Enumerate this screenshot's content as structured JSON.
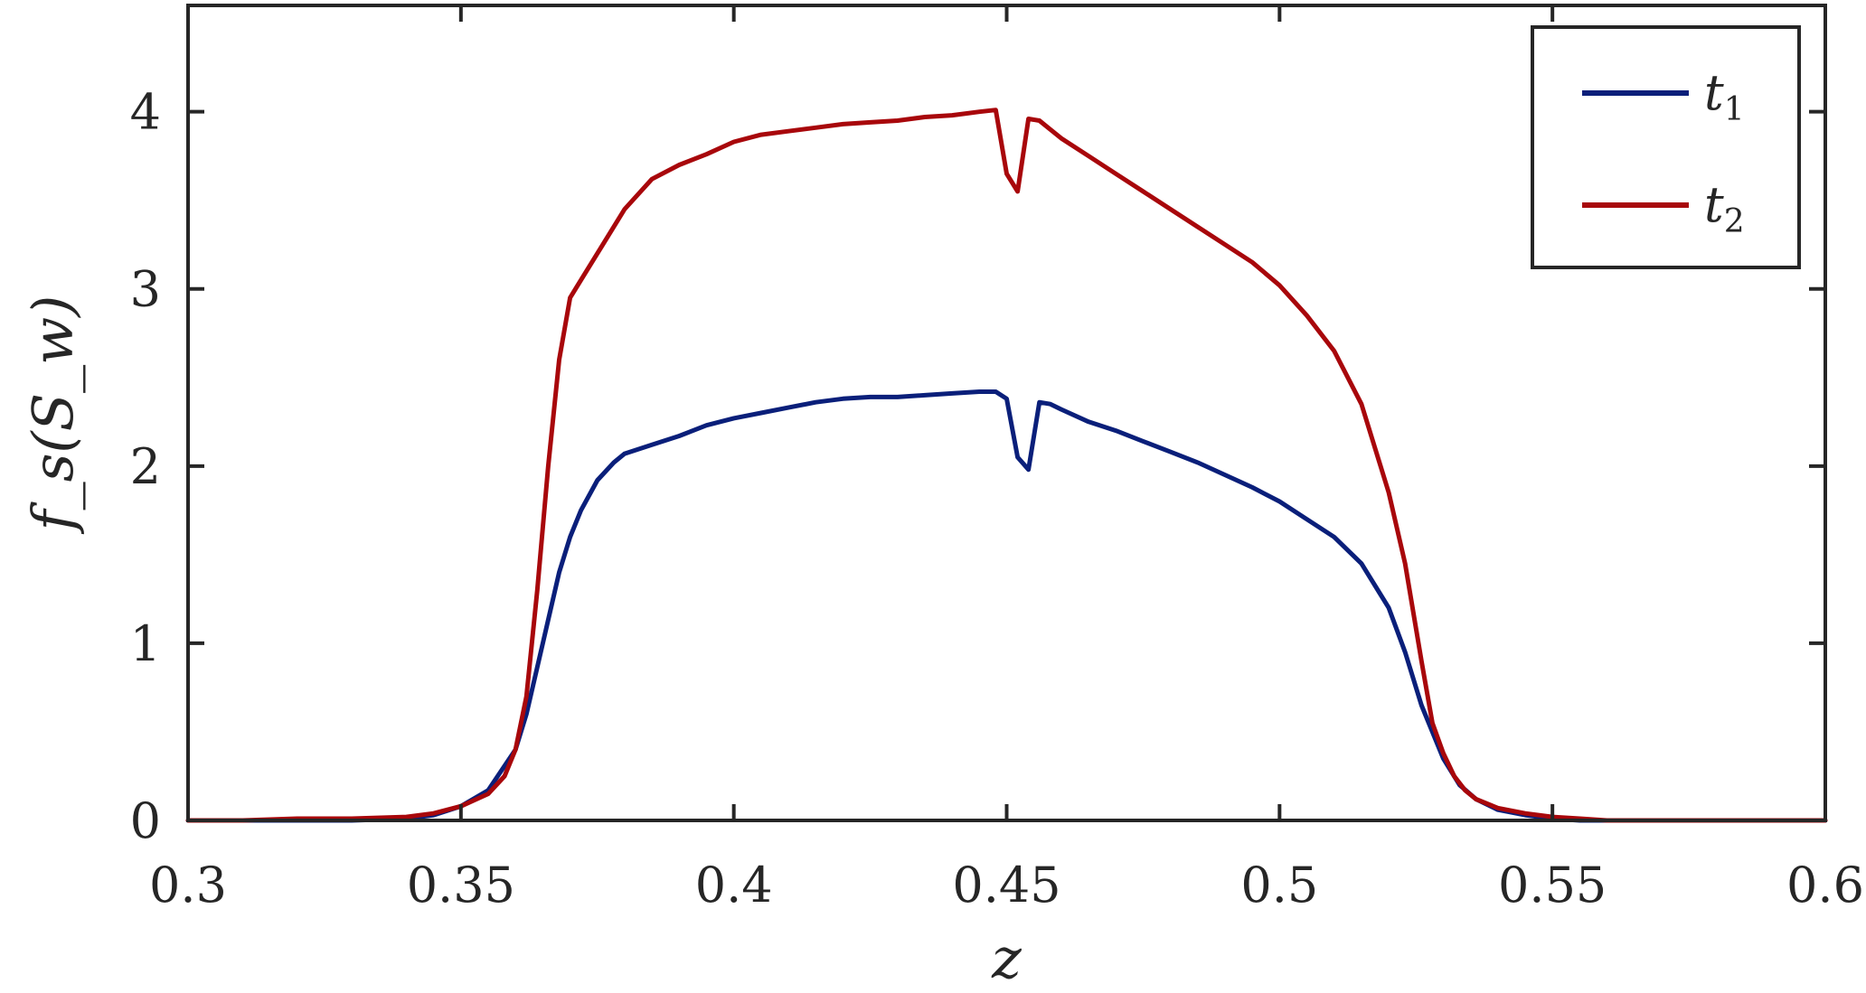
{
  "chart_data": {
    "type": "line",
    "xlabel": "z",
    "ylabel": "f_s(S_w)",
    "xlim": [
      0.3,
      0.6
    ],
    "ylim": [
      0,
      4.6
    ],
    "xticks": [
      0.3,
      0.35,
      0.4,
      0.45,
      0.5,
      0.55,
      0.6
    ],
    "xtick_labels": [
      "0.3",
      "0.35",
      "0.4",
      "0.45",
      "0.5",
      "0.55",
      "0.6"
    ],
    "yticks": [
      0,
      1,
      2,
      3,
      4
    ],
    "ytick_labels": [
      "0",
      "1",
      "2",
      "3",
      "4"
    ],
    "grid": false,
    "legend_position": "top-right",
    "series": [
      {
        "name": "t1",
        "label_main": "t",
        "label_sub": "1",
        "color": "#0a1f7a",
        "x": [
          0.3,
          0.31,
          0.32,
          0.33,
          0.34,
          0.345,
          0.35,
          0.355,
          0.36,
          0.362,
          0.365,
          0.368,
          0.37,
          0.372,
          0.375,
          0.378,
          0.38,
          0.385,
          0.39,
          0.395,
          0.4,
          0.405,
          0.41,
          0.415,
          0.42,
          0.425,
          0.43,
          0.435,
          0.44,
          0.445,
          0.448,
          0.45,
          0.452,
          0.454,
          0.456,
          0.458,
          0.46,
          0.465,
          0.47,
          0.475,
          0.48,
          0.485,
          0.49,
          0.495,
          0.5,
          0.505,
          0.51,
          0.515,
          0.52,
          0.523,
          0.526,
          0.53,
          0.533,
          0.536,
          0.54,
          0.545,
          0.55,
          0.555,
          0.56,
          0.57,
          0.58,
          0.6
        ],
        "y": [
          0.0,
          0.0,
          0.0,
          0.0,
          0.01,
          0.03,
          0.08,
          0.17,
          0.4,
          0.6,
          1.0,
          1.4,
          1.6,
          1.75,
          1.92,
          2.02,
          2.07,
          2.12,
          2.17,
          2.23,
          2.27,
          2.3,
          2.33,
          2.36,
          2.38,
          2.39,
          2.39,
          2.4,
          2.41,
          2.42,
          2.42,
          2.38,
          2.05,
          1.98,
          2.36,
          2.35,
          2.32,
          2.25,
          2.2,
          2.14,
          2.08,
          2.02,
          1.95,
          1.88,
          1.8,
          1.7,
          1.6,
          1.45,
          1.2,
          0.95,
          0.65,
          0.35,
          0.2,
          0.12,
          0.06,
          0.03,
          0.01,
          0.0,
          0.0,
          0.0,
          0.0,
          0.0
        ]
      },
      {
        "name": "t2",
        "label_main": "t",
        "label_sub": "2",
        "color": "#a8070b",
        "x": [
          0.3,
          0.31,
          0.32,
          0.33,
          0.34,
          0.345,
          0.35,
          0.355,
          0.358,
          0.36,
          0.362,
          0.364,
          0.366,
          0.368,
          0.37,
          0.372,
          0.374,
          0.376,
          0.38,
          0.385,
          0.39,
          0.395,
          0.4,
          0.405,
          0.41,
          0.415,
          0.42,
          0.425,
          0.43,
          0.435,
          0.44,
          0.445,
          0.448,
          0.45,
          0.452,
          0.454,
          0.456,
          0.458,
          0.46,
          0.465,
          0.47,
          0.475,
          0.48,
          0.485,
          0.49,
          0.495,
          0.5,
          0.505,
          0.51,
          0.515,
          0.52,
          0.523,
          0.526,
          0.528,
          0.53,
          0.532,
          0.534,
          0.536,
          0.54,
          0.545,
          0.55,
          0.555,
          0.56,
          0.57,
          0.58,
          0.6
        ],
        "y": [
          0.0,
          0.0,
          0.01,
          0.01,
          0.02,
          0.04,
          0.08,
          0.15,
          0.25,
          0.4,
          0.7,
          1.3,
          2.0,
          2.6,
          2.95,
          3.05,
          3.15,
          3.25,
          3.45,
          3.62,
          3.7,
          3.76,
          3.83,
          3.87,
          3.89,
          3.91,
          3.93,
          3.94,
          3.95,
          3.97,
          3.98,
          4.0,
          4.01,
          3.65,
          3.55,
          3.96,
          3.95,
          3.9,
          3.85,
          3.75,
          3.65,
          3.55,
          3.45,
          3.35,
          3.25,
          3.15,
          3.02,
          2.85,
          2.65,
          2.35,
          1.85,
          1.45,
          0.9,
          0.55,
          0.38,
          0.25,
          0.17,
          0.12,
          0.07,
          0.04,
          0.02,
          0.01,
          0.0,
          0.0,
          0.0,
          0.0
        ]
      }
    ]
  }
}
